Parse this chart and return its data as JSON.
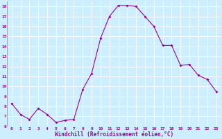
{
  "x": [
    0,
    1,
    2,
    3,
    4,
    5,
    6,
    7,
    8,
    9,
    10,
    11,
    12,
    13,
    14,
    15,
    16,
    17,
    18,
    19,
    20,
    21,
    22,
    23
  ],
  "y": [
    8.3,
    7.2,
    6.7,
    7.8,
    7.2,
    6.4,
    6.6,
    6.7,
    9.7,
    11.3,
    14.8,
    17.0,
    18.1,
    18.1,
    18.0,
    17.0,
    16.0,
    14.1,
    14.1,
    12.1,
    12.2,
    11.1,
    10.7,
    9.5
  ],
  "line_color": "#990099",
  "marker": "D",
  "marker_size": 2,
  "bg_color": "#cceeff",
  "grid_color": "#ffffff",
  "xlabel": "Windchill (Refroidissement éolien,°C)",
  "xlabel_color": "#990099",
  "tick_color": "#990099",
  "ylim": [
    6,
    18.5
  ],
  "xlim": [
    -0.5,
    23.5
  ],
  "yticks": [
    6,
    7,
    8,
    9,
    10,
    11,
    12,
    13,
    14,
    15,
    16,
    17,
    18
  ],
  "xticks": [
    0,
    1,
    2,
    3,
    4,
    5,
    6,
    7,
    8,
    9,
    10,
    11,
    12,
    13,
    14,
    15,
    16,
    17,
    18,
    19,
    20,
    21,
    22,
    23
  ],
  "xtick_labels": [
    "0",
    "1",
    "2",
    "3",
    "4",
    "5",
    "6",
    "7",
    "8",
    "9",
    "10",
    "11",
    "12",
    "13",
    "14",
    "15",
    "16",
    "17",
    "18",
    "19",
    "20",
    "21",
    "22",
    "23"
  ]
}
